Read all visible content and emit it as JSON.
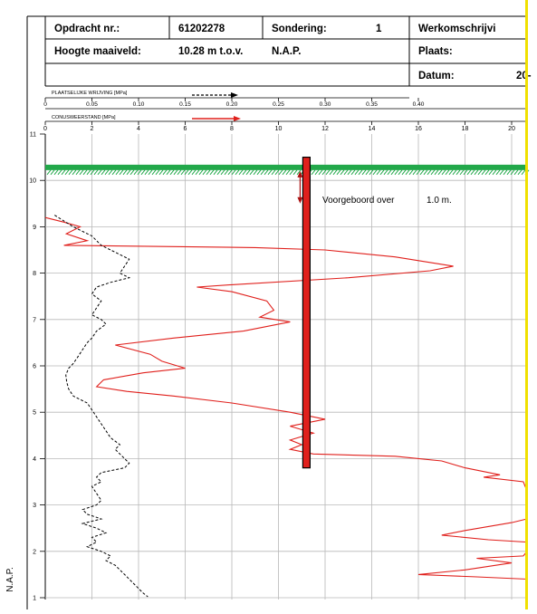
{
  "header": {
    "rows": [
      [
        {
          "text": "Opdracht nr.:"
        },
        {
          "text": "61202278"
        },
        {
          "text": "Sondering:"
        },
        {
          "text": "1"
        },
        {
          "text": "Werkomschrijvi"
        }
      ],
      [
        {
          "text": "Hoogte maaiveld:"
        },
        {
          "text": "10.28  m  t.o.v."
        },
        {
          "text": "N.A.P."
        },
        {
          "text": "Plaats:"
        }
      ],
      [
        {
          "text": "Datum:"
        },
        {
          "text": "20-"
        }
      ]
    ]
  },
  "colors": {
    "cone": "#e0201c",
    "friction": "#000000",
    "ground": "#22a84a",
    "marker": "#e0201c",
    "edge": "#f0e000"
  },
  "chart_data": {
    "type": "line",
    "friction_axis": {
      "label": "PLAATSELIJKE WRIJVING [MPa]",
      "ticks": [
        "0",
        "0.05",
        "0.10",
        "0.15",
        "0.20",
        "0.25",
        "0.30",
        "0.35",
        "0.40"
      ],
      "range": [
        0,
        0.4
      ]
    },
    "cone_axis": {
      "label": "CONUSWEERSTAND [MPa]",
      "ticks": [
        "0",
        "2",
        "4",
        "6",
        "8",
        "10",
        "12",
        "14",
        "16",
        "18",
        "20"
      ],
      "range": [
        0,
        20
      ]
    },
    "y_axis": {
      "label": "N.A.P.",
      "ticks": [
        "11",
        "10",
        "9",
        "8",
        "7",
        "6",
        "5",
        "4",
        "3",
        "2",
        "1"
      ],
      "range": [
        1,
        11
      ]
    },
    "ground_level": 10.28,
    "annotation": {
      "text1": "Voorgeboord over",
      "text2": "1.0  m."
    },
    "predrilled": {
      "cone": 11.2,
      "top": 10.5,
      "bottom": 3.8
    },
    "grid": true,
    "series": [
      {
        "axis": "cone",
        "points": [
          [
            0,
            9.2
          ],
          [
            0.8,
            9.1
          ],
          [
            1.5,
            9.0
          ],
          [
            0.9,
            8.85
          ],
          [
            1.8,
            8.7
          ],
          [
            0.8,
            8.6
          ],
          [
            9.0,
            8.55
          ],
          [
            12.0,
            8.5
          ],
          [
            15.0,
            8.35
          ],
          [
            17.5,
            8.15
          ],
          [
            16.5,
            8.05
          ],
          [
            13.0,
            7.9
          ],
          [
            8.0,
            7.75
          ],
          [
            6.5,
            7.7
          ],
          [
            8.0,
            7.6
          ],
          [
            9.5,
            7.4
          ],
          [
            9.8,
            7.2
          ],
          [
            9.2,
            7.05
          ],
          [
            10.5,
            6.95
          ],
          [
            8.5,
            6.75
          ],
          [
            5.5,
            6.6
          ],
          [
            3.0,
            6.45
          ],
          [
            4.5,
            6.25
          ],
          [
            5.0,
            6.1
          ],
          [
            6.0,
            5.95
          ],
          [
            4.2,
            5.85
          ],
          [
            2.5,
            5.7
          ],
          [
            2.2,
            5.55
          ],
          [
            3.5,
            5.45
          ],
          [
            5.5,
            5.35
          ],
          [
            8.0,
            5.2
          ],
          [
            10.5,
            5.0
          ],
          [
            12.0,
            4.85
          ],
          [
            10.5,
            4.7
          ],
          [
            11.5,
            4.55
          ],
          [
            10.5,
            4.4
          ],
          [
            11.0,
            4.3
          ],
          [
            10.5,
            4.2
          ],
          [
            11.5,
            4.1
          ],
          [
            15.0,
            4.05
          ],
          [
            17.0,
            3.95
          ],
          [
            18.0,
            3.8
          ],
          [
            19.5,
            3.65
          ],
          [
            18.8,
            3.6
          ],
          [
            20.5,
            3.5
          ],
          [
            22.0,
            3.3
          ],
          [
            22.0,
            2.7
          ],
          [
            20.0,
            2.62
          ],
          [
            18.0,
            2.45
          ],
          [
            17.0,
            2.35
          ],
          [
            19.0,
            2.25
          ],
          [
            22.0,
            2.2
          ],
          [
            22.0,
            2.0
          ],
          [
            20.5,
            1.9
          ],
          [
            18.5,
            1.85
          ],
          [
            20.0,
            1.75
          ],
          [
            18.0,
            1.6
          ],
          [
            16.0,
            1.5
          ],
          [
            18.5,
            1.45
          ],
          [
            22.0,
            1.4
          ]
        ]
      },
      {
        "axis": "friction",
        "points": [
          [
            0.01,
            9.25
          ],
          [
            0.03,
            9.0
          ],
          [
            0.05,
            8.8
          ],
          [
            0.06,
            8.6
          ],
          [
            0.07,
            8.5
          ],
          [
            0.08,
            8.4
          ],
          [
            0.09,
            8.3
          ],
          [
            0.085,
            8.15
          ],
          [
            0.08,
            8.0
          ],
          [
            0.09,
            7.9
          ],
          [
            0.07,
            7.8
          ],
          [
            0.055,
            7.7
          ],
          [
            0.05,
            7.55
          ],
          [
            0.06,
            7.4
          ],
          [
            0.055,
            7.25
          ],
          [
            0.05,
            7.1
          ],
          [
            0.06,
            7.0
          ],
          [
            0.065,
            6.9
          ],
          [
            0.055,
            6.75
          ],
          [
            0.05,
            6.6
          ],
          [
            0.045,
            6.5
          ],
          [
            0.04,
            6.35
          ],
          [
            0.035,
            6.2
          ],
          [
            0.03,
            6.05
          ],
          [
            0.025,
            5.95
          ],
          [
            0.022,
            5.8
          ],
          [
            0.023,
            5.65
          ],
          [
            0.025,
            5.5
          ],
          [
            0.03,
            5.35
          ],
          [
            0.045,
            5.2
          ],
          [
            0.05,
            5.05
          ],
          [
            0.055,
            4.9
          ],
          [
            0.06,
            4.75
          ],
          [
            0.065,
            4.6
          ],
          [
            0.07,
            4.45
          ],
          [
            0.08,
            4.3
          ],
          [
            0.075,
            4.2
          ],
          [
            0.08,
            4.1
          ],
          [
            0.085,
            4.0
          ],
          [
            0.09,
            3.9
          ],
          [
            0.085,
            3.8
          ],
          [
            0.06,
            3.7
          ],
          [
            0.055,
            3.6
          ],
          [
            0.06,
            3.5
          ],
          [
            0.05,
            3.4
          ],
          [
            0.055,
            3.25
          ],
          [
            0.06,
            3.1
          ],
          [
            0.055,
            3.0
          ],
          [
            0.04,
            2.9
          ],
          [
            0.045,
            2.8
          ],
          [
            0.06,
            2.7
          ],
          [
            0.04,
            2.6
          ],
          [
            0.055,
            2.5
          ],
          [
            0.065,
            2.4
          ],
          [
            0.05,
            2.3
          ],
          [
            0.055,
            2.2
          ],
          [
            0.045,
            2.1
          ],
          [
            0.06,
            2.0
          ],
          [
            0.07,
            1.9
          ],
          [
            0.065,
            1.8
          ],
          [
            0.075,
            1.7
          ],
          [
            0.08,
            1.6
          ],
          [
            0.085,
            1.5
          ],
          [
            0.09,
            1.4
          ],
          [
            0.095,
            1.3
          ],
          [
            0.1,
            1.2
          ],
          [
            0.105,
            1.1
          ],
          [
            0.11,
            1.02
          ]
        ]
      }
    ]
  }
}
